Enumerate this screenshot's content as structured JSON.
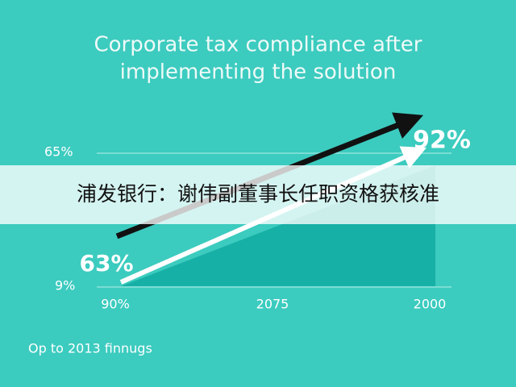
{
  "title": {
    "lines": [
      "Corporate tax compliance after",
      "implementing the solution"
    ]
  },
  "axis_labels": {
    "upper": "65%",
    "lower": "9%"
  },
  "callouts": {
    "end": "92%",
    "start": "63%"
  },
  "x_labels": [
    "90%",
    "2075",
    "2000"
  ],
  "footnote": "Op to 2013 finnugs",
  "banner": "浦发银行：谢伟副董事长任职资格获核准"
}
